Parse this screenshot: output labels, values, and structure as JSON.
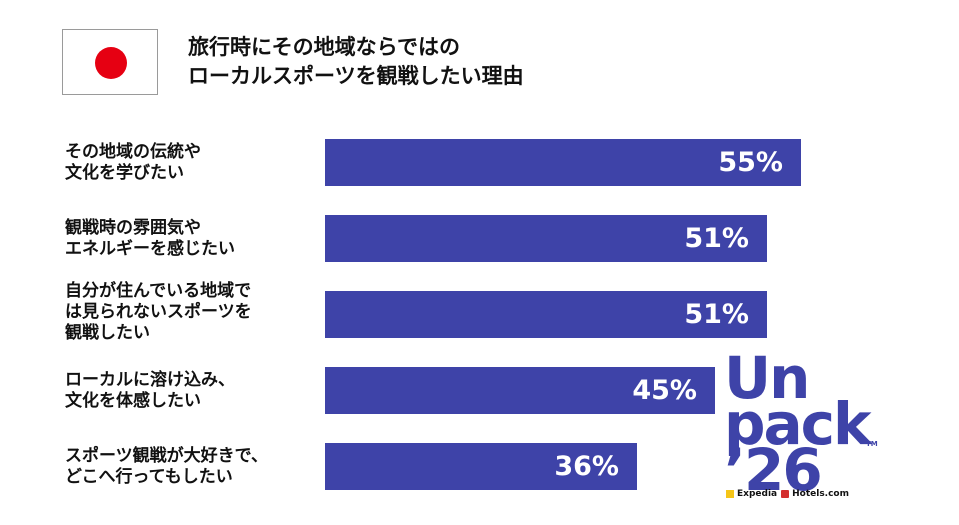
{
  "header": {
    "title_lines": [
      "旅行時にその地域ならではの",
      "ローカルスポーツを観戦したい理由"
    ],
    "flag_icon": "japan-flag-icon",
    "flag_color": "#e60012"
  },
  "colors": {
    "bar": "#3e43a8",
    "logo": "#3e43a8"
  },
  "chart_data": {
    "type": "bar",
    "orientation": "horizontal",
    "title": "旅行時にその地域ならではのローカルスポーツを観戦したい理由",
    "categories": [
      [
        "その地域の伝統や",
        "文化を学びたい"
      ],
      [
        "観戦時の雰囲気や",
        "エネルギーを感じたい"
      ],
      [
        "自分が住んでいる地域で",
        "は見られないスポーツを",
        "観戦したい"
      ],
      [
        "ローカルに溶け込み、",
        "文化を体感したい"
      ],
      [
        "スポーツ観戦が大好きで、",
        "どこへ行ってもしたい"
      ]
    ],
    "values": [
      55,
      51,
      51,
      45,
      36
    ],
    "data_labels": [
      "55%",
      "51%",
      "51%",
      "45%",
      "36%"
    ],
    "xlim": [
      0,
      100
    ],
    "grid": false,
    "legend": "none"
  },
  "logo": {
    "line1": "Un",
    "line2": "pack",
    "line3": "’26",
    "tm": "TM",
    "sponsor1": "Expedia",
    "sponsor2": "Hotels.com"
  }
}
